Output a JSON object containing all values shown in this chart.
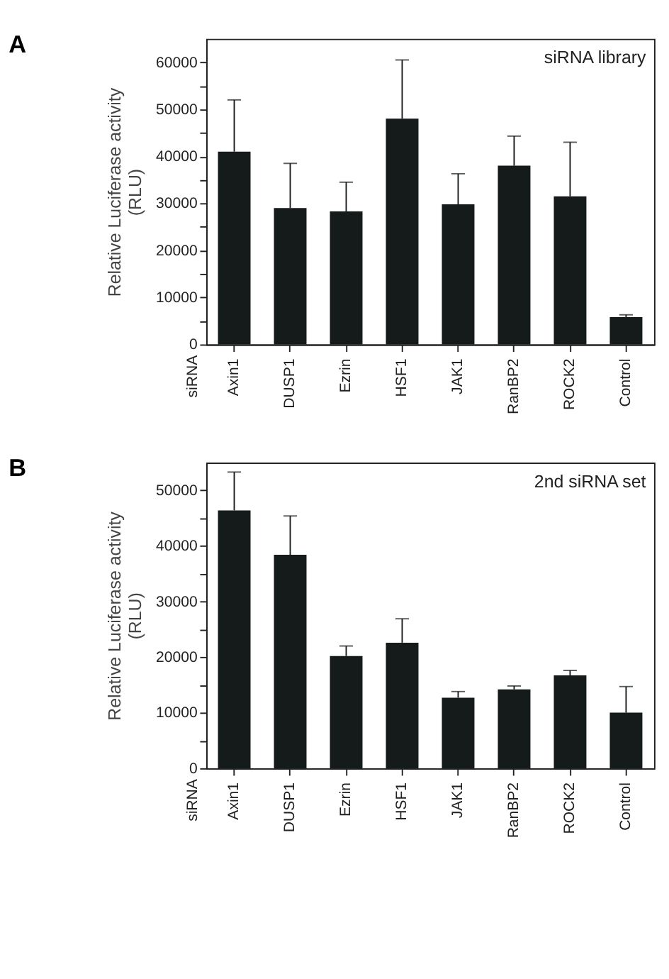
{
  "chart_data": [
    {
      "type": "bar",
      "title": "A",
      "ylabel": "Relative Luciferase activity\n(RLU)",
      "annotations": [
        "siRNA library",
        "siRNA"
      ],
      "categories": [
        "Axin1",
        "DUSP1",
        "Ezrin",
        "HSF1",
        "JAK1",
        "RanBP2",
        "ROCK2",
        "Control"
      ],
      "series": [
        {
          "color": "#151a1a",
          "values": [
            41000,
            29000,
            28300,
            48000,
            29800,
            38000,
            31500,
            5800
          ],
          "errors": [
            [
              41000,
              52000
            ],
            [
              29000,
              38500
            ],
            [
              28300,
              34500
            ],
            [
              48000,
              60500
            ],
            [
              29800,
              36300
            ],
            [
              38000,
              44300
            ],
            [
              31500,
              43000
            ],
            [
              5800,
              6300
            ]
          ]
        }
      ],
      "ylim": [
        0,
        65000
      ],
      "yticks": [
        0,
        {
          "value": 5000,
          "label": null
        },
        10000,
        {
          "value": 15000,
          "label": null
        },
        20000,
        {
          "value": 25000,
          "label": null
        },
        30000,
        {
          "value": 35000,
          "label": null
        },
        40000,
        {
          "value": 45000,
          "label": null
        },
        50000,
        {
          "value": 55000,
          "label": null
        },
        60000
      ],
      "grid": false
    },
    {
      "type": "bar",
      "title": "B",
      "ylabel": "Relative Luciferase activity\n(RLU)",
      "annotations": [
        "2nd siRNA set",
        "siRNA"
      ],
      "categories": [
        "Axin1",
        "DUSP1",
        "Ezrin",
        "HSF1",
        "JAK1",
        "RanBP2",
        "ROCK2",
        "Control"
      ],
      "series": [
        {
          "color": "#151a1a",
          "values": [
            46400,
            38400,
            20200,
            22600,
            12700,
            14200,
            16700,
            10000
          ],
          "errors": [
            [
              46400,
              53300
            ],
            [
              38400,
              45400
            ],
            [
              20200,
              22000
            ],
            [
              22600,
              26900
            ],
            [
              12700,
              13800
            ],
            [
              14200,
              14800
            ],
            [
              16700,
              17600
            ],
            [
              10000,
              14700
            ]
          ]
        }
      ],
      "ylim": [
        0,
        55000
      ],
      "yticks": [
        0,
        {
          "value": 5000,
          "label": null
        },
        10000,
        {
          "value": 15000,
          "label": null
        },
        20000,
        {
          "value": 25000,
          "label": null
        },
        30000,
        {
          "value": 35000,
          "label": null
        },
        40000,
        {
          "value": 45000,
          "label": null
        },
        50000
      ],
      "grid": false
    }
  ]
}
